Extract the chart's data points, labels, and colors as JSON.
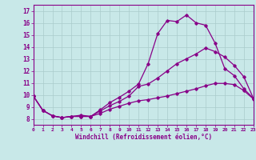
{
  "title": "",
  "xlabel": "Windchill (Refroidissement éolien,°C)",
  "xlim": [
    0,
    23
  ],
  "ylim": [
    7.5,
    17.5
  ],
  "yticks": [
    8,
    9,
    10,
    11,
    12,
    13,
    14,
    15,
    16,
    17
  ],
  "xticks": [
    0,
    1,
    2,
    3,
    4,
    5,
    6,
    7,
    8,
    9,
    10,
    11,
    12,
    13,
    14,
    15,
    16,
    17,
    18,
    19,
    20,
    21,
    22,
    23
  ],
  "background_color": "#c8e8e8",
  "line_color": "#880088",
  "grid_color": "#aacccc",
  "line1_x": [
    0,
    1,
    2,
    3,
    4,
    5,
    6,
    7,
    8,
    9,
    10,
    11,
    12,
    13,
    14,
    15,
    16,
    17,
    18,
    19,
    20,
    21,
    22,
    23
  ],
  "line1_y": [
    9.9,
    8.7,
    8.25,
    8.1,
    8.2,
    8.3,
    8.2,
    8.75,
    9.35,
    9.8,
    10.3,
    10.9,
    12.6,
    15.1,
    16.2,
    16.1,
    16.65,
    16.0,
    15.8,
    14.3,
    12.2,
    11.6,
    10.5,
    9.7
  ],
  "line2_x": [
    0,
    1,
    2,
    3,
    4,
    5,
    6,
    7,
    8,
    9,
    10,
    11,
    12,
    13,
    14,
    15,
    16,
    17,
    18,
    19,
    20,
    21,
    22,
    23
  ],
  "line2_y": [
    9.9,
    8.7,
    8.25,
    8.1,
    8.2,
    8.2,
    8.2,
    8.65,
    9.1,
    9.45,
    9.9,
    10.7,
    10.9,
    11.4,
    12.0,
    12.6,
    13.0,
    13.4,
    13.9,
    13.6,
    13.15,
    12.45,
    11.5,
    9.7
  ],
  "line3_x": [
    0,
    1,
    2,
    3,
    4,
    5,
    6,
    7,
    8,
    9,
    10,
    11,
    12,
    13,
    14,
    15,
    16,
    17,
    18,
    19,
    20,
    21,
    22,
    23
  ],
  "line3_y": [
    9.9,
    8.7,
    8.25,
    8.1,
    8.2,
    8.2,
    8.2,
    8.45,
    8.8,
    9.05,
    9.3,
    9.5,
    9.6,
    9.75,
    9.9,
    10.1,
    10.3,
    10.5,
    10.75,
    10.95,
    10.95,
    10.85,
    10.35,
    9.65
  ]
}
